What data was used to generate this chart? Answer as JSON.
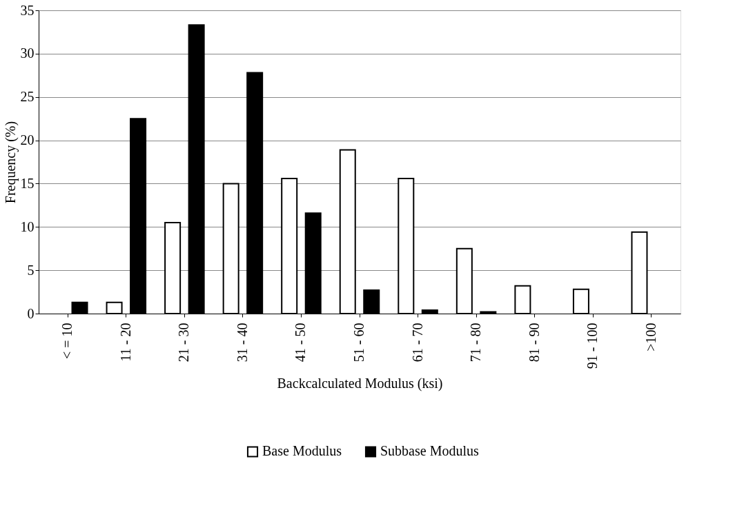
{
  "chart_data": {
    "type": "bar",
    "xlabel": "Backcalculated Modulus (ksi)",
    "ylabel": "Frequency (%)",
    "categories": [
      "< = 10",
      "11 - 20",
      "21 - 30",
      "31 - 40",
      "41 - 50",
      "51 - 60",
      "61 - 70",
      "71 - 80",
      "81 - 90",
      "91 - 100",
      ">100"
    ],
    "series": [
      {
        "name": "Base Modulus",
        "color": "#ffffff",
        "values": [
          0,
          1.3,
          10.5,
          15.0,
          15.6,
          18.9,
          15.6,
          7.5,
          3.2,
          2.8,
          9.4
        ]
      },
      {
        "name": "Subbase Modulus",
        "color": "#000000",
        "values": [
          1.3,
          22.5,
          33.3,
          27.8,
          11.6,
          2.7,
          0.4,
          0.2,
          0,
          0,
          0
        ]
      }
    ],
    "ylim": [
      0,
      35
    ],
    "yticks": [
      0,
      5,
      10,
      15,
      20,
      25,
      30,
      35
    ],
    "grid": "y",
    "legend": "bottom"
  }
}
